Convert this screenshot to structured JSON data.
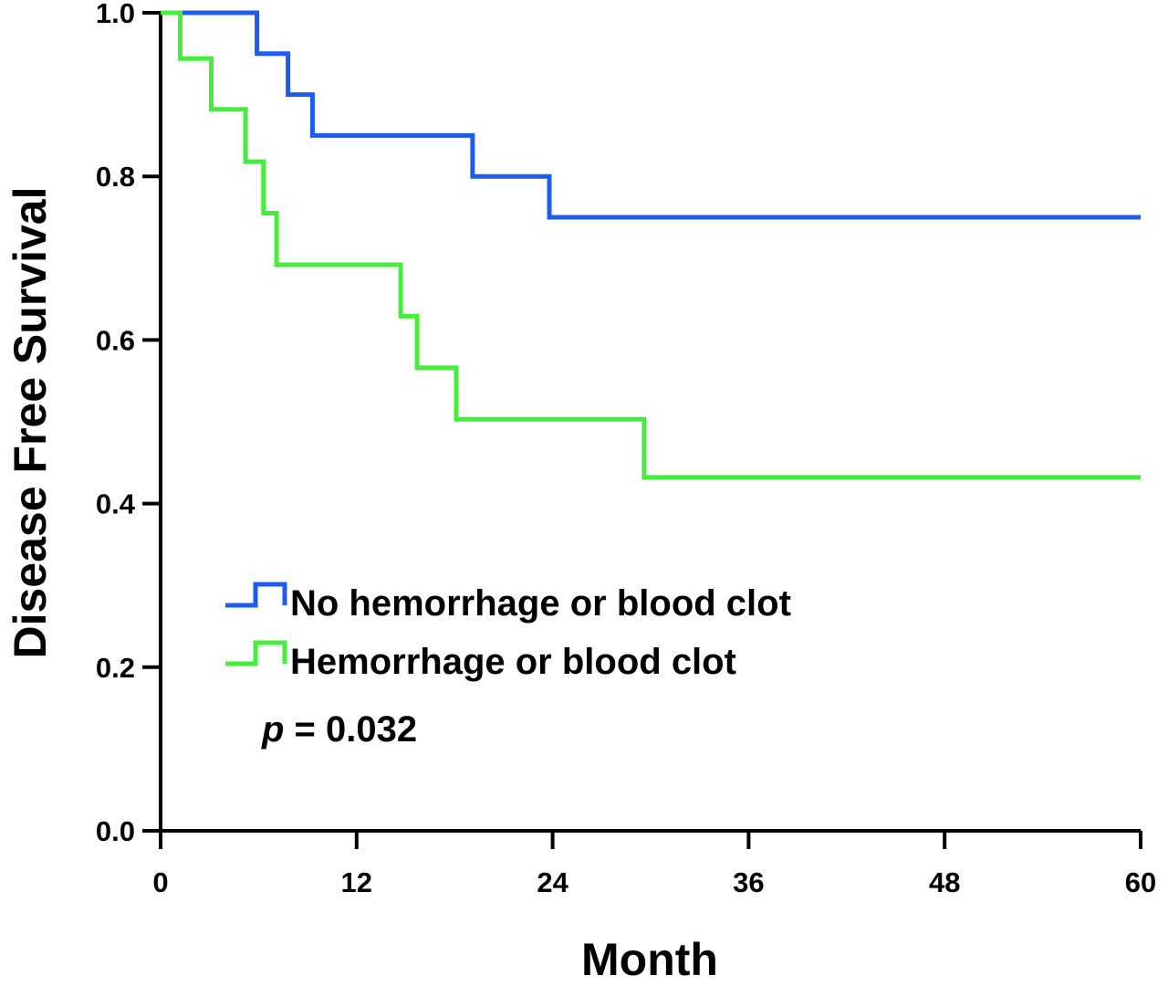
{
  "chart_data": {
    "type": "line",
    "step": true,
    "title": "",
    "xlabel": "Month",
    "ylabel": "Disease Free Survival",
    "xlim": [
      0,
      60
    ],
    "ylim": [
      0,
      1
    ],
    "xticks": [
      0,
      12,
      24,
      36,
      48,
      60
    ],
    "xtick_labels": [
      "0",
      "12",
      "24",
      "36",
      "48",
      "60"
    ],
    "yticks": [
      0,
      0.2,
      0.4,
      0.6,
      0.8,
      1.0
    ],
    "ytick_labels": [
      "0.0",
      "0.2",
      "0.4",
      "0.6",
      "0.8",
      "1.0"
    ],
    "grid": false,
    "legend_position": "lower-left",
    "series": [
      {
        "name": "No hemorrhage or blood clot",
        "color": "#1f5bed",
        "x": [
          0,
          5.9,
          7.8,
          9.3,
          19.1,
          23.8,
          60
        ],
        "y": [
          1.0,
          0.95,
          0.9,
          0.85,
          0.8,
          0.75,
          0.75
        ]
      },
      {
        "name": "Hemorrhage or blood clot",
        "color": "#44ef3c",
        "x": [
          0,
          1.2,
          3.1,
          5.2,
          6.3,
          7.1,
          14.7,
          15.7,
          18.1,
          29.6,
          60
        ],
        "y": [
          1.0,
          0.944,
          0.882,
          0.818,
          0.755,
          0.692,
          0.629,
          0.566,
          0.503,
          0.432,
          0.432
        ]
      }
    ],
    "annotation": {
      "p_symbol": "p",
      "p_rest": " = 0.032"
    }
  }
}
